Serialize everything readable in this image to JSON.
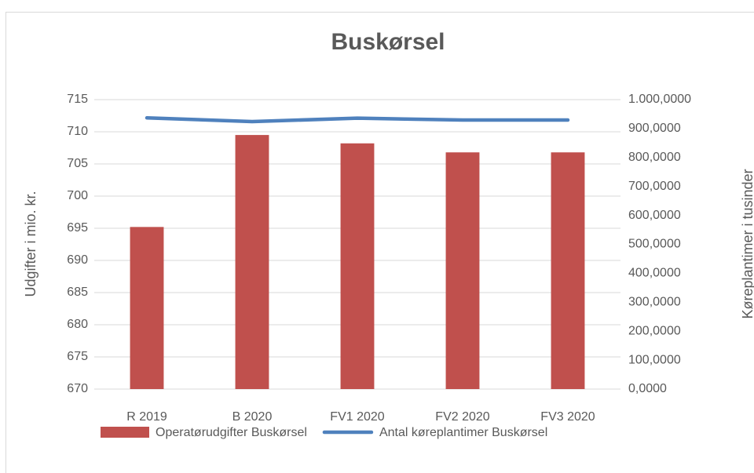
{
  "chart_data": {
    "type": "bar_line",
    "title": "Buskørsel",
    "y_label": "Udgifter i mio. kr.",
    "y2_label": "Køreplantimer i tusinder",
    "categories": [
      "R 2019",
      "B 2020",
      "FV1 2020",
      "FV2 2020",
      "FV3 2020"
    ],
    "series": [
      {
        "name": "Operatørudgifter Buskørsel",
        "type": "bar",
        "color": "#c0504d",
        "values": [
          695.2,
          709.5,
          708.2,
          706.8,
          706.8
        ]
      },
      {
        "name": "Antal køreplantimer Buskørsel",
        "type": "line",
        "axis": "y2",
        "color": "#4f81bd",
        "values": [
          937000,
          924000,
          936000,
          929500,
          929500
        ]
      }
    ],
    "ylim": [
      670,
      715
    ],
    "yticks": [
      670,
      675,
      680,
      685,
      690,
      695,
      700,
      705,
      710,
      715
    ],
    "y2lim": [
      0,
      1000000
    ],
    "y2ticks": [
      {
        "value": 0,
        "label": "0,0000"
      },
      {
        "value": 100000,
        "label": "100,0000"
      },
      {
        "value": 200000,
        "label": "200,0000"
      },
      {
        "value": 300000,
        "label": "300,0000"
      },
      {
        "value": 400000,
        "label": "400,0000"
      },
      {
        "value": 500000,
        "label": "500,0000"
      },
      {
        "value": 600000,
        "label": "600,0000"
      },
      {
        "value": 700000,
        "label": "700,0000"
      },
      {
        "value": 800000,
        "label": "800,0000"
      },
      {
        "value": 900000,
        "label": "900,0000"
      },
      {
        "value": 1000000,
        "label": "1.000,0000"
      }
    ],
    "grid": true,
    "legend": "bottom"
  }
}
